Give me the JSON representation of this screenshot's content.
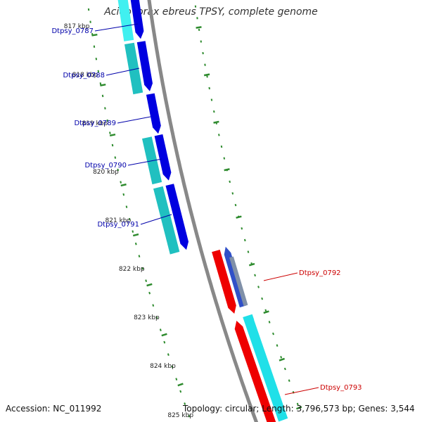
{
  "title": "Acidovorax ebreus TPSY, complete genome",
  "accession": "Accession: NC_011992",
  "summary": "Topology: circular; Length: 3,796,573 bp; Genes: 3,544",
  "colors": {
    "backbone": "#888888",
    "tick": "#2e8b2e",
    "cds_forward": "#0000e0",
    "cds_reverse": "#ee0000",
    "gene_forward": "#20c0c0",
    "gene_reverse": "#20e0e8",
    "label_forward": "#0000aa",
    "label_reverse": "#cc0000"
  },
  "ruler": [
    "817 kbp",
    "818 kbp",
    "819 kbp",
    "820 kbp",
    "821 kbp",
    "822 kbp",
    "823 kbp",
    "824 kbp",
    "825 kbp"
  ],
  "genes": [
    {
      "name": "Dtpsy_0787",
      "strand": "forward"
    },
    {
      "name": "Dtpsy_0788",
      "strand": "forward"
    },
    {
      "name": "Dtpsy_0789",
      "strand": "forward"
    },
    {
      "name": "Dtpsy_0790",
      "strand": "forward"
    },
    {
      "name": "Dtpsy_0791",
      "strand": "forward"
    },
    {
      "name": "Dtpsy_0792",
      "strand": "reverse"
    },
    {
      "name": "Dtpsy_0793",
      "strand": "reverse"
    }
  ]
}
